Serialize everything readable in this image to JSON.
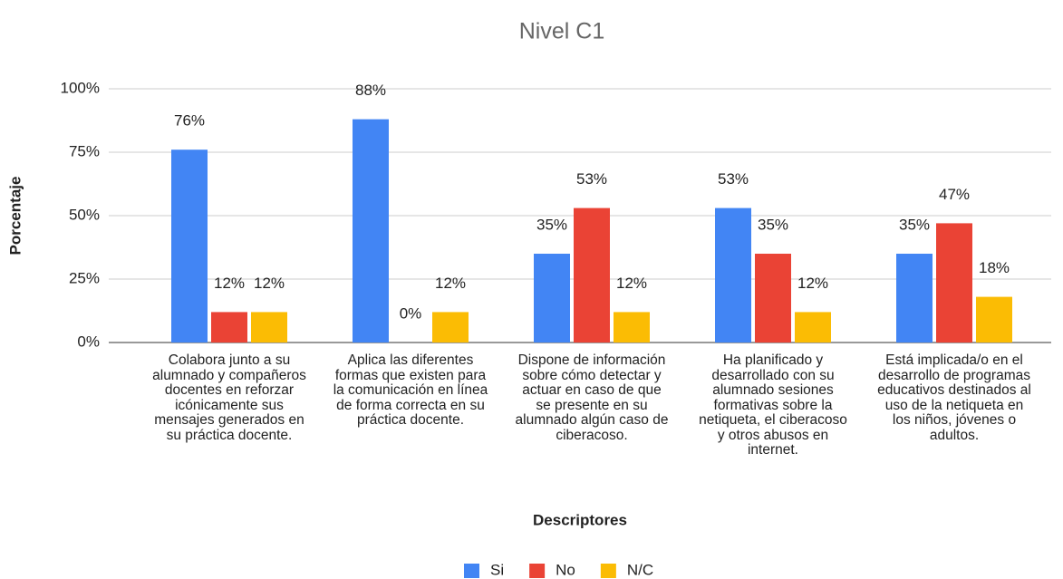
{
  "chart_data": {
    "type": "bar",
    "title": "Nivel C1",
    "x_label": "Descriptores",
    "y_label": "Porcentaje",
    "categories": [
      "Colabora junto a su alumnado y compañeros docentes en reforzar icónicamente sus mensajes generados en  su práctica docente.",
      "Aplica las diferentes formas que existen para la comunicación en línea de forma correcta en su práctica docente.",
      "Dispone de información sobre cómo detectar y actuar en caso de que se presente en su alumnado algún caso de ciberacoso.",
      "Ha planificado y desarrollado con su alumnado sesiones formativas sobre la netiqueta, el ciberacoso y otros abusos en internet.",
      "Está implicada/o en el desarrollo de programas educativos destinados al uso de la netiqueta en los niños, jóvenes o adultos."
    ],
    "series": [
      {
        "name": "Si",
        "color": "#4285f4",
        "values": [
          76,
          88,
          35,
          53,
          35
        ],
        "value_labels": [
          "76%",
          "88%",
          "35%",
          "53%",
          "35%"
        ]
      },
      {
        "name": "No",
        "color": "#ea4335",
        "values": [
          12,
          0,
          53,
          35,
          47
        ],
        "value_labels": [
          "12%",
          "0%",
          "53%",
          "35%",
          "47%"
        ]
      },
      {
        "name": "N/C",
        "color": "#fbbc04",
        "values": [
          12,
          12,
          12,
          12,
          18
        ],
        "value_labels": [
          "12%",
          "12%",
          "12%",
          "12%",
          "18%"
        ]
      }
    ],
    "ylim": [
      0,
      100
    ],
    "yticks": [
      {
        "value": 0,
        "label": "0%"
      },
      {
        "value": 25,
        "label": "25%"
      },
      {
        "value": 50,
        "label": "50%"
      },
      {
        "value": 75,
        "label": "75%"
      },
      {
        "value": 100,
        "label": "100%"
      }
    ],
    "grid": true,
    "legend": "bottom"
  }
}
